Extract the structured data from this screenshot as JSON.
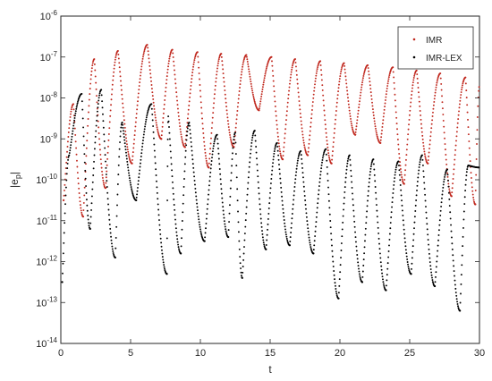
{
  "chart_data": {
    "type": "scatter",
    "title": "",
    "xlabel": "t",
    "ylabel_main": "|e",
    "ylabel_sub": "p",
    "ylabel_end": "|",
    "xlim": [
      0,
      30
    ],
    "ylim_exp": [
      -14,
      -6
    ],
    "y_scale": "log",
    "x_ticks": [
      "0",
      "5",
      "10",
      "15",
      "20",
      "25",
      "30"
    ],
    "y_ticks": [
      {
        "base": "10",
        "exp": "-14"
      },
      {
        "base": "10",
        "exp": "-13"
      },
      {
        "base": "10",
        "exp": "-12"
      },
      {
        "base": "10",
        "exp": "-11"
      },
      {
        "base": "10",
        "exp": "-10"
      },
      {
        "base": "10",
        "exp": "-9"
      },
      {
        "base": "10",
        "exp": "-8"
      },
      {
        "base": "10",
        "exp": "-7"
      },
      {
        "base": "10",
        "exp": "-6"
      }
    ],
    "legend_position": "top-right",
    "series": [
      {
        "name": "IMR",
        "color": "#c0281e",
        "minima_t": [
          0.2,
          1.6,
          3.2,
          5.1,
          7.2,
          8.9,
          10.6,
          12.4,
          14.2,
          15.9,
          17.7,
          19.4,
          21.1,
          22.9,
          24.6,
          26.3,
          28.0,
          29.7
        ],
        "minima_exp": [
          -10.5,
          -10.9,
          -10.2,
          -9.6,
          -9.0,
          -9.2,
          -9.7,
          -9.2,
          -8.3,
          -9.5,
          -9.4,
          -9.6,
          -8.9,
          -9.1,
          -10.1,
          -9.6,
          -10.4,
          -10.6
        ],
        "peaks": [
          [
            0.9,
            -8.15
          ],
          [
            2.4,
            -7.05
          ],
          [
            4.1,
            -6.85
          ],
          [
            6.2,
            -6.7
          ],
          [
            8.0,
            -6.82
          ],
          [
            9.8,
            -6.88
          ],
          [
            11.5,
            -6.92
          ],
          [
            13.3,
            -6.95
          ],
          [
            15.1,
            -7.0
          ],
          [
            16.8,
            -7.05
          ],
          [
            18.6,
            -7.1
          ],
          [
            20.3,
            -7.15
          ],
          [
            22.0,
            -7.2
          ],
          [
            23.8,
            -7.25
          ],
          [
            25.5,
            -7.33
          ],
          [
            27.2,
            -7.4
          ],
          [
            29.0,
            -7.5
          ],
          [
            30.0,
            -7.7
          ]
        ]
      },
      {
        "name": "IMR-LEX",
        "color": "#000000",
        "minima_t": [
          0.1,
          2.1,
          3.9,
          5.4,
          7.6,
          8.6,
          10.3,
          12.0,
          13.0,
          14.7,
          16.4,
          18.1,
          19.9,
          21.6,
          23.3,
          25.1,
          26.8,
          28.6
        ],
        "minima_exp": [
          -12.5,
          -11.2,
          -11.9,
          -10.5,
          -12.3,
          -11.8,
          -11.5,
          -11.4,
          -12.4,
          -11.7,
          -11.6,
          -11.8,
          -12.9,
          -12.5,
          -12.7,
          -12.3,
          -12.6,
          -13.2
        ],
        "peaks": [
          [
            0.6,
            -9.4
          ],
          [
            1.5,
            -7.9
          ],
          [
            2.9,
            -7.8
          ],
          [
            4.4,
            -8.6
          ],
          [
            6.5,
            -8.15
          ],
          [
            7.7,
            -8.45
          ],
          [
            9.2,
            -8.6
          ],
          [
            11.2,
            -8.9
          ],
          [
            12.5,
            -8.85
          ],
          [
            13.9,
            -8.8
          ],
          [
            15.5,
            -9.1
          ],
          [
            17.2,
            -9.3
          ],
          [
            19.0,
            -9.25
          ],
          [
            20.7,
            -9.4
          ],
          [
            22.4,
            -9.5
          ],
          [
            24.2,
            -9.55
          ],
          [
            25.9,
            -9.4
          ],
          [
            27.7,
            -9.75
          ],
          [
            29.2,
            -9.65
          ],
          [
            30.0,
            -9.7
          ]
        ]
      }
    ]
  }
}
